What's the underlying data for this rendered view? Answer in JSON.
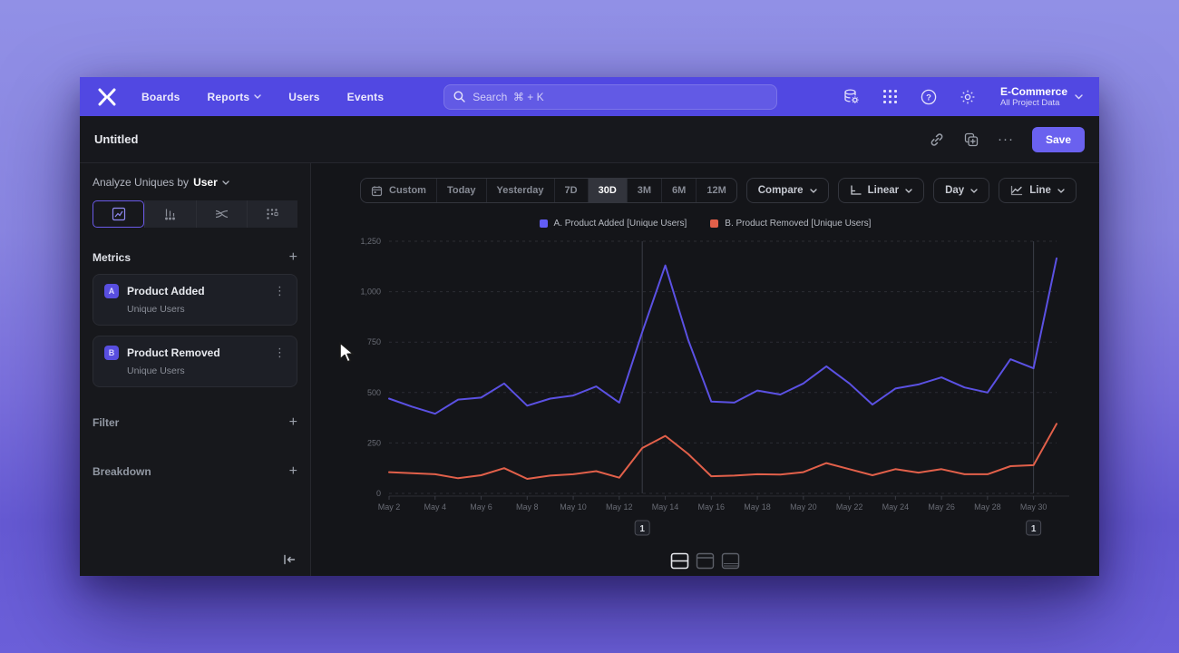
{
  "icons": {
    "plus": "+",
    "kebab": "⋮",
    "ellipsis": "···"
  },
  "nav": {
    "items": [
      {
        "label": "Boards"
      },
      {
        "label": "Reports"
      },
      {
        "label": "Users"
      },
      {
        "label": "Events"
      }
    ],
    "search_placeholder": "Search  ⌘ + K",
    "project": {
      "name": "E-Commerce",
      "scope": "All Project Data"
    }
  },
  "header": {
    "title": "Untitled",
    "save_label": "Save"
  },
  "sidebar": {
    "analyze_prefix": "Analyze Uniques by",
    "analyze_value": "User",
    "metrics_label": "Metrics",
    "filter_label": "Filter",
    "breakdown_label": "Breakdown",
    "metrics": [
      {
        "badge": "A",
        "title": "Product Added",
        "subtitle": "Unique Users"
      },
      {
        "badge": "B",
        "title": "Product Removed",
        "subtitle": "Unique Users"
      }
    ]
  },
  "toolbar": {
    "ranges": [
      "Custom",
      "Today",
      "Yesterday",
      "7D",
      "30D",
      "3M",
      "6M",
      "12M"
    ],
    "active_range": "30D",
    "compare_label": "Compare",
    "scale_label": "Linear",
    "interval_label": "Day",
    "chart_type_label": "Line"
  },
  "legend": [
    {
      "label": "A. Product Added [Unique Users]",
      "color": "#625df5"
    },
    {
      "label": "B. Product Removed [Unique Users]",
      "color": "#e2604a"
    }
  ],
  "chart_data": {
    "type": "line",
    "x": [
      "May 2",
      "May 3",
      "May 4",
      "May 5",
      "May 6",
      "May 7",
      "May 8",
      "May 9",
      "May 10",
      "May 11",
      "May 12",
      "May 13",
      "May 14",
      "May 15",
      "May 16",
      "May 17",
      "May 18",
      "May 19",
      "May 20",
      "May 21",
      "May 22",
      "May 23",
      "May 24",
      "May 25",
      "May 26",
      "May 27",
      "May 28",
      "May 29",
      "May 30",
      "May 31"
    ],
    "x_tick_labels": [
      "May 2",
      "May 4",
      "May 6",
      "May 8",
      "May 10",
      "May 12",
      "May 14",
      "May 16",
      "May 18",
      "May 20",
      "May 22",
      "May 24",
      "May 26",
      "May 28",
      "May 30"
    ],
    "ylim": [
      0,
      1250
    ],
    "yticks": [
      0,
      250,
      500,
      750,
      1000,
      1250
    ],
    "ytick_labels": [
      "0",
      "250",
      "500",
      "750",
      "1,000",
      "1,250"
    ],
    "grid": "horizontal-dashed",
    "legend_position": "top-center",
    "series": [
      {
        "name": "A. Product Added [Unique Users]",
        "color": "#5b51e3",
        "values": [
          470,
          430,
          395,
          465,
          475,
          545,
          435,
          470,
          485,
          530,
          450,
          800,
          1130,
          760,
          455,
          450,
          510,
          490,
          545,
          630,
          545,
          440,
          520,
          540,
          575,
          525,
          500,
          665,
          620,
          1165
        ]
      },
      {
        "name": "B. Product Removed [Unique Users]",
        "color": "#e2604a",
        "values": [
          105,
          100,
          95,
          75,
          90,
          125,
          72,
          88,
          95,
          110,
          78,
          225,
          285,
          195,
          85,
          88,
          95,
          93,
          105,
          150,
          120,
          90,
          120,
          103,
          120,
          95,
          95,
          135,
          140,
          345
        ]
      }
    ],
    "annotations": [
      {
        "label": "1",
        "x": "May 13"
      },
      {
        "label": "1",
        "x": "May 30"
      }
    ]
  }
}
